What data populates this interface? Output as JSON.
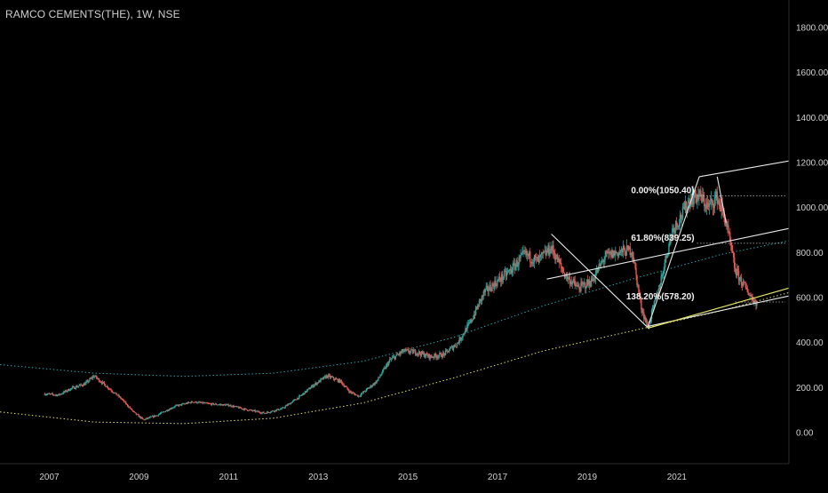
{
  "header": {
    "title": "RAMCO CEMENTS(THE), 1W, NSE"
  },
  "colors": {
    "background": "#000000",
    "up_candle": "#26a69a",
    "down_candle": "#ef5350",
    "axis_text": "#d0d0d0",
    "fib_line": "#e6e6e6",
    "channel_line": "#e6e6e6",
    "curve_cyan": "#26a0a8",
    "curve_yellow": "#e3e36a",
    "dotted_level": "#bdbdbd"
  },
  "chart_data": {
    "type": "line",
    "title": "RAMCO CEMENTS(THE), 1W, NSE",
    "xlabel": "",
    "ylabel": "",
    "x_ticks": [
      "2007",
      "2009",
      "2011",
      "2013",
      "2015",
      "2017",
      "2019",
      "2021"
    ],
    "y_ticks": [
      "0.00",
      "200.00",
      "400.00",
      "600.00",
      "800.00",
      "1000.00",
      "1200.00",
      "1400.00",
      "1600.00",
      "1800.00"
    ],
    "xlim": [
      2005.9,
      2023.5
    ],
    "ylim": [
      -140,
      1920
    ],
    "grid": false,
    "price_path": [
      [
        2006.9,
        170
      ],
      [
        2007.2,
        165
      ],
      [
        2007.5,
        195
      ],
      [
        2007.8,
        215
      ],
      [
        2008.0,
        250
      ],
      [
        2008.3,
        200
      ],
      [
        2008.6,
        150
      ],
      [
        2008.9,
        85
      ],
      [
        2009.1,
        55
      ],
      [
        2009.4,
        75
      ],
      [
        2009.8,
        115
      ],
      [
        2010.2,
        135
      ],
      [
        2010.6,
        125
      ],
      [
        2011.0,
        120
      ],
      [
        2011.4,
        100
      ],
      [
        2011.8,
        85
      ],
      [
        2012.2,
        105
      ],
      [
        2012.6,
        160
      ],
      [
        2012.9,
        210
      ],
      [
        2013.2,
        250
      ],
      [
        2013.5,
        225
      ],
      [
        2013.7,
        180
      ],
      [
        2013.9,
        160
      ],
      [
        2014.3,
        225
      ],
      [
        2014.6,
        320
      ],
      [
        2014.9,
        360
      ],
      [
        2015.2,
        355
      ],
      [
        2015.5,
        335
      ],
      [
        2015.8,
        345
      ],
      [
        2016.1,
        395
      ],
      [
        2016.4,
        490
      ],
      [
        2016.7,
        620
      ],
      [
        2017.0,
        670
      ],
      [
        2017.3,
        720
      ],
      [
        2017.6,
        790
      ],
      [
        2017.9,
        760
      ],
      [
        2018.2,
        820
      ],
      [
        2018.5,
        700
      ],
      [
        2018.8,
        640
      ],
      [
        2019.1,
        670
      ],
      [
        2019.4,
        780
      ],
      [
        2019.7,
        800
      ],
      [
        2020.0,
        810
      ],
      [
        2020.2,
        560
      ],
      [
        2020.35,
        465
      ],
      [
        2020.6,
        640
      ],
      [
        2020.9,
        900
      ],
      [
        2021.1,
        960
      ],
      [
        2021.3,
        1040
      ],
      [
        2021.5,
        1050
      ],
      [
        2021.7,
        1000
      ],
      [
        2021.9,
        1045
      ],
      [
        2022.1,
        930
      ],
      [
        2022.3,
        720
      ],
      [
        2022.5,
        650
      ],
      [
        2022.7,
        590
      ],
      [
        2022.8,
        570
      ]
    ],
    "fib_levels": [
      {
        "label": "0.00%(1050.40)",
        "value": 1050.4
      },
      {
        "label": "61.80%(839.25)",
        "value": 839.25
      },
      {
        "label": "138.20%(578.20)",
        "value": 578.2
      }
    ],
    "trend_lines": [
      {
        "name": "channel-top",
        "points": [
          [
            2021.5,
            1135
          ],
          [
            2023.5,
            1205
          ]
        ]
      },
      {
        "name": "channel-mid",
        "points": [
          [
            2018.1,
            680
          ],
          [
            2023.5,
            905
          ]
        ]
      },
      {
        "name": "channel-bottom",
        "points": [
          [
            2020.35,
            470
          ],
          [
            2023.5,
            605
          ]
        ]
      },
      {
        "name": "lower-support",
        "points": [
          [
            2020.35,
            462
          ],
          [
            2023.5,
            640
          ]
        ]
      },
      {
        "name": "zigzag-1",
        "points": [
          [
            2018.2,
            880
          ],
          [
            2020.35,
            465
          ]
        ]
      },
      {
        "name": "zigzag-2",
        "points": [
          [
            2020.35,
            465
          ],
          [
            2021.5,
            1135
          ]
        ]
      },
      {
        "name": "zigzag-3",
        "points": [
          [
            2021.9,
            1135
          ],
          [
            2022.1,
            930
          ]
        ]
      }
    ],
    "curves": [
      {
        "name": "upper-parabola",
        "style": "dotted",
        "points": [
          [
            2005.9,
            300
          ],
          [
            2008,
            262
          ],
          [
            2010,
            248
          ],
          [
            2012,
            262
          ],
          [
            2014,
            315
          ],
          [
            2016,
            420
          ],
          [
            2018,
            560
          ],
          [
            2020,
            680
          ],
          [
            2022,
            790
          ],
          [
            2023.5,
            850
          ]
        ]
      },
      {
        "name": "lower-parabola",
        "style": "dotted",
        "points": [
          [
            2005.9,
            90
          ],
          [
            2008,
            45
          ],
          [
            2010,
            38
          ],
          [
            2012,
            62
          ],
          [
            2014,
            130
          ],
          [
            2016,
            240
          ],
          [
            2018,
            360
          ],
          [
            2020,
            450
          ],
          [
            2022,
            540
          ],
          [
            2023.5,
            620
          ]
        ]
      }
    ]
  }
}
